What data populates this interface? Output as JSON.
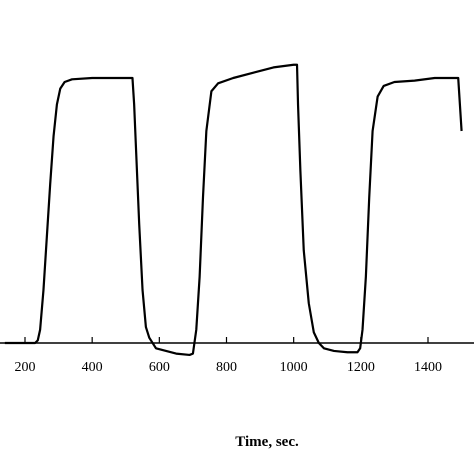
{
  "chart_data": {
    "type": "line",
    "title": "",
    "xlabel": "Time, sec.",
    "ylabel": "",
    "xlim": [
      140,
      1500
    ],
    "ylim": [
      -0.12,
      1.12
    ],
    "x_ticks": [
      200,
      400,
      600,
      800,
      1000,
      1200,
      1400
    ],
    "x_tick_labels": [
      "200",
      "400",
      "600",
      "800",
      "1000",
      "1200",
      "1400"
    ],
    "grid": false,
    "series": [
      {
        "color": "#000000",
        "points": [
          [
            140,
            0.0
          ],
          [
            230,
            0.0
          ],
          [
            238,
            0.01
          ],
          [
            245,
            0.05
          ],
          [
            255,
            0.2
          ],
          [
            265,
            0.4
          ],
          [
            275,
            0.6
          ],
          [
            285,
            0.78
          ],
          [
            295,
            0.9
          ],
          [
            305,
            0.96
          ],
          [
            318,
            0.985
          ],
          [
            340,
            0.995
          ],
          [
            400,
            1.0
          ],
          [
            450,
            1.0
          ],
          [
            520,
            1.0
          ],
          [
            525,
            0.9
          ],
          [
            530,
            0.75
          ],
          [
            540,
            0.45
          ],
          [
            550,
            0.2
          ],
          [
            560,
            0.06
          ],
          [
            570,
            0.02
          ],
          [
            590,
            -0.02
          ],
          [
            620,
            -0.03
          ],
          [
            650,
            -0.04
          ],
          [
            690,
            -0.045
          ],
          [
            700,
            -0.04
          ],
          [
            710,
            0.05
          ],
          [
            720,
            0.25
          ],
          [
            730,
            0.55
          ],
          [
            740,
            0.8
          ],
          [
            755,
            0.95
          ],
          [
            775,
            0.98
          ],
          [
            820,
            1.0
          ],
          [
            880,
            1.02
          ],
          [
            940,
            1.04
          ],
          [
            1000,
            1.05
          ],
          [
            1010,
            1.05
          ],
          [
            1013,
            0.9
          ],
          [
            1020,
            0.65
          ],
          [
            1030,
            0.35
          ],
          [
            1045,
            0.15
          ],
          [
            1060,
            0.04
          ],
          [
            1075,
            0.0
          ],
          [
            1090,
            -0.02
          ],
          [
            1120,
            -0.03
          ],
          [
            1160,
            -0.035
          ],
          [
            1190,
            -0.035
          ],
          [
            1198,
            -0.02
          ],
          [
            1205,
            0.05
          ],
          [
            1215,
            0.25
          ],
          [
            1225,
            0.55
          ],
          [
            1235,
            0.8
          ],
          [
            1250,
            0.93
          ],
          [
            1268,
            0.97
          ],
          [
            1300,
            0.985
          ],
          [
            1360,
            0.99
          ],
          [
            1420,
            1.0
          ],
          [
            1470,
            1.0
          ],
          [
            1490,
            1.0
          ],
          [
            1500,
            0.8
          ]
        ]
      }
    ]
  }
}
